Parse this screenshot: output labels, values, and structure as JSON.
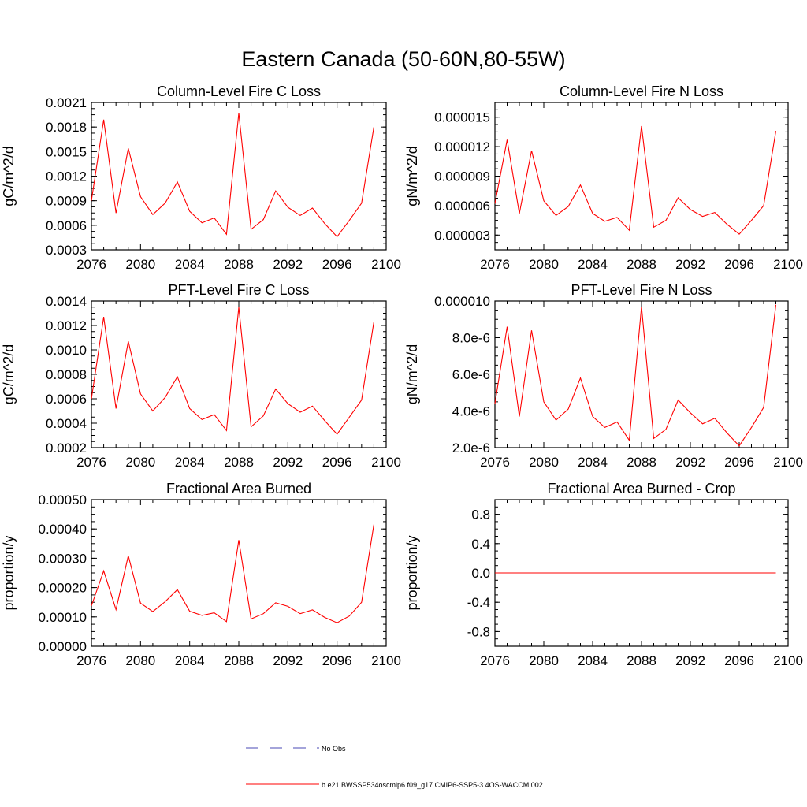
{
  "figure": {
    "title": "Eastern Canada (50-60N,80-55W)",
    "legend": [
      {
        "label": "No Obs",
        "color": "#4a4ab4",
        "style": "dashed"
      },
      {
        "label": "b.e21.BWSSP534oscmip6.f09_g17.CMIP6-SSP5-3.4OS-WACCM.002",
        "color": "#ff0000",
        "style": "solid"
      }
    ]
  },
  "chart_data": [
    {
      "type": "line",
      "title": "Column-Level Fire C Loss",
      "ylabel": "gC/m^2/d",
      "xlim": [
        2076,
        2100
      ],
      "ylim": [
        0.0003,
        0.0021
      ],
      "xticks": [
        2076,
        2080,
        2084,
        2088,
        2092,
        2096,
        2100
      ],
      "xtick_labels": [
        "2076",
        "2080",
        "2084",
        "2088",
        "2092",
        "2096",
        "2100"
      ],
      "yticks": [
        0.0003,
        0.0006,
        0.0009,
        0.0012,
        0.0015,
        0.0018,
        0.0021
      ],
      "ytick_labels": [
        "0.0003",
        "0.0006",
        "0.0009",
        "0.0012",
        "0.0015",
        "0.0018",
        "0.0021"
      ],
      "series": [
        {
          "name": "b.e21.BWSSP534oscmip6.f09_g17.CMIP6-SSP5-3.4OS-WACCM.002",
          "color": "#ff0000",
          "x": [
            2076,
            2077,
            2078,
            2079,
            2080,
            2081,
            2082,
            2083,
            2084,
            2085,
            2086,
            2087,
            2088,
            2089,
            2090,
            2091,
            2092,
            2093,
            2094,
            2095,
            2096,
            2097,
            2098,
            2099
          ],
          "y": [
            0.0009,
            0.00189,
            0.00075,
            0.00154,
            0.00095,
            0.00073,
            0.00087,
            0.00113,
            0.00077,
            0.00063,
            0.00069,
            0.00049,
            0.00197,
            0.00055,
            0.00067,
            0.00102,
            0.00082,
            0.00072,
            0.00081,
            0.00062,
            0.00046,
            0.00066,
            0.00087,
            0.0018
          ]
        }
      ]
    },
    {
      "type": "line",
      "title": "Column-Level Fire N Loss",
      "ylabel": "gN/m^2/d",
      "xlim": [
        2076,
        2100
      ],
      "ylim": [
        1.5e-06,
        1.65e-05
      ],
      "xticks": [
        2076,
        2080,
        2084,
        2088,
        2092,
        2096,
        2100
      ],
      "xtick_labels": [
        "2076",
        "2080",
        "2084",
        "2088",
        "2092",
        "2096",
        "2100"
      ],
      "yticks": [
        3e-06,
        6e-06,
        9e-06,
        1.2e-05,
        1.5e-05
      ],
      "ytick_labels": [
        "0.000003",
        "0.000006",
        "0.000009",
        "0.000012",
        "0.000015"
      ],
      "series": [
        {
          "name": "b.e21.BWSSP534oscmip6.f09_g17.CMIP6-SSP5-3.4OS-WACCM.002",
          "color": "#ff0000",
          "x": [
            2076,
            2077,
            2078,
            2079,
            2080,
            2081,
            2082,
            2083,
            2084,
            2085,
            2086,
            2087,
            2088,
            2089,
            2090,
            2091,
            2092,
            2093,
            2094,
            2095,
            2096,
            2097,
            2098,
            2099
          ],
          "y": [
            6.2e-06,
            1.27e-05,
            5.2e-06,
            1.16e-05,
            6.5e-06,
            5e-06,
            5.9e-06,
            8.1e-06,
            5.2e-06,
            4.4e-06,
            4.8e-06,
            3.5e-06,
            1.41e-05,
            3.8e-06,
            4.5e-06,
            6.8e-06,
            5.6e-06,
            4.9e-06,
            5.3e-06,
            4.1e-06,
            3.1e-06,
            4.5e-06,
            6e-06,
            1.36e-05
          ]
        }
      ]
    },
    {
      "type": "line",
      "title": "PFT-Level Fire C Loss",
      "ylabel": "gC/m^2/d",
      "xlim": [
        2076,
        2100
      ],
      "ylim": [
        0.0002,
        0.0014
      ],
      "xticks": [
        2076,
        2080,
        2084,
        2088,
        2092,
        2096,
        2100
      ],
      "xtick_labels": [
        "2076",
        "2080",
        "2084",
        "2088",
        "2092",
        "2096",
        "2100"
      ],
      "yticks": [
        0.0002,
        0.0004,
        0.0006,
        0.0008,
        0.001,
        0.0012,
        0.0014
      ],
      "ytick_labels": [
        "0.0002",
        "0.0004",
        "0.0006",
        "0.0008",
        "0.0010",
        "0.0012",
        "0.0014"
      ],
      "series": [
        {
          "name": "b.e21.BWSSP534oscmip6.f09_g17.CMIP6-SSP5-3.4OS-WACCM.002",
          "color": "#ff0000",
          "x": [
            2076,
            2077,
            2078,
            2079,
            2080,
            2081,
            2082,
            2083,
            2084,
            2085,
            2086,
            2087,
            2088,
            2089,
            2090,
            2091,
            2092,
            2093,
            2094,
            2095,
            2096,
            2097,
            2098,
            2099
          ],
          "y": [
            0.0006,
            0.00127,
            0.00052,
            0.00107,
            0.00064,
            0.0005,
            0.00061,
            0.00078,
            0.00052,
            0.00043,
            0.00047,
            0.00034,
            0.00135,
            0.00037,
            0.00046,
            0.00068,
            0.00056,
            0.00049,
            0.00054,
            0.00042,
            0.00031,
            0.00045,
            0.00059,
            0.00123
          ]
        }
      ]
    },
    {
      "type": "line",
      "title": "PFT-Level Fire N Loss",
      "ylabel": "gN/m^2/d",
      "xlim": [
        2076,
        2100
      ],
      "ylim": [
        2e-06,
        1e-05
      ],
      "xticks": [
        2076,
        2080,
        2084,
        2088,
        2092,
        2096,
        2100
      ],
      "xtick_labels": [
        "2076",
        "2080",
        "2084",
        "2088",
        "2092",
        "2096",
        "2100"
      ],
      "yticks": [
        2e-06,
        4e-06,
        6e-06,
        8e-06,
        1e-05
      ],
      "ytick_labels": [
        "2.0e-6",
        "4.0e-6",
        "6.0e-6",
        "8.0e-6",
        "0.000010"
      ],
      "series": [
        {
          "name": "b.e21.BWSSP534oscmip6.f09_g17.CMIP6-SSP5-3.4OS-WACCM.002",
          "color": "#ff0000",
          "x": [
            2076,
            2077,
            2078,
            2079,
            2080,
            2081,
            2082,
            2083,
            2084,
            2085,
            2086,
            2087,
            2088,
            2089,
            2090,
            2091,
            2092,
            2093,
            2094,
            2095,
            2096,
            2097,
            2098,
            2099
          ],
          "y": [
            4.4e-06,
            8.6e-06,
            3.7e-06,
            8.4e-06,
            4.5e-06,
            3.5e-06,
            4.1e-06,
            5.8e-06,
            3.7e-06,
            3.1e-06,
            3.4e-06,
            2.4e-06,
            9.7e-06,
            2.5e-06,
            3e-06,
            4.6e-06,
            3.9e-06,
            3.3e-06,
            3.6e-06,
            2.8e-06,
            2.1e-06,
            3.1e-06,
            4.2e-06,
            9.8e-06
          ]
        }
      ]
    },
    {
      "type": "line",
      "title": "Fractional Area Burned",
      "ylabel": "proportion/y",
      "xlim": [
        2076,
        2100
      ],
      "ylim": [
        0.0,
        0.0005
      ],
      "xticks": [
        2076,
        2080,
        2084,
        2088,
        2092,
        2096,
        2100
      ],
      "xtick_labels": [
        "2076",
        "2080",
        "2084",
        "2088",
        "2092",
        "2096",
        "2100"
      ],
      "yticks": [
        0.0,
        0.0001,
        0.0002,
        0.0003,
        0.0004,
        0.0005
      ],
      "ytick_labels": [
        "0.00000",
        "0.00010",
        "0.00020",
        "0.00030",
        "0.00040",
        "0.00050"
      ],
      "series": [
        {
          "name": "b.e21.BWSSP534oscmip6.f09_g17.CMIP6-SSP5-3.4OS-WACCM.002",
          "color": "#ff0000",
          "x": [
            2076,
            2077,
            2078,
            2079,
            2080,
            2081,
            2082,
            2083,
            2084,
            2085,
            2086,
            2087,
            2088,
            2089,
            2090,
            2091,
            2092,
            2093,
            2094,
            2095,
            2096,
            2097,
            2098,
            2099
          ],
          "y": [
            0.000138,
            0.000257,
            0.000125,
            0.000309,
            0.000147,
            0.000118,
            0.000152,
            0.000193,
            0.000119,
            0.000105,
            0.000114,
            8.4e-05,
            0.000362,
            9.3e-05,
            0.000111,
            0.000148,
            0.000136,
            0.000111,
            0.000124,
            9.8e-05,
            8e-05,
            0.000103,
            0.00015,
            0.000415
          ]
        }
      ]
    },
    {
      "type": "line",
      "title": "Fractional Area Burned - Crop",
      "ylabel": "proportion/y",
      "xlim": [
        2076,
        2100
      ],
      "ylim": [
        -1.0,
        1.0
      ],
      "xticks": [
        2076,
        2080,
        2084,
        2088,
        2092,
        2096,
        2100
      ],
      "xtick_labels": [
        "2076",
        "2080",
        "2084",
        "2088",
        "2092",
        "2096",
        "2100"
      ],
      "yticks": [
        -0.8,
        -0.4,
        0.0,
        0.4,
        0.8
      ],
      "ytick_labels": [
        "-0.8",
        "-0.4",
        "0.0",
        "0.4",
        "0.8"
      ],
      "series": [
        {
          "name": "b.e21.BWSSP534oscmip6.f09_g17.CMIP6-SSP5-3.4OS-WACCM.002",
          "color": "#ff0000",
          "x": [
            2076,
            2077,
            2078,
            2079,
            2080,
            2081,
            2082,
            2083,
            2084,
            2085,
            2086,
            2087,
            2088,
            2089,
            2090,
            2091,
            2092,
            2093,
            2094,
            2095,
            2096,
            2097,
            2098,
            2099
          ],
          "y": [
            0,
            0,
            0,
            0,
            0,
            0,
            0,
            0,
            0,
            0,
            0,
            0,
            0,
            0,
            0,
            0,
            0,
            0,
            0,
            0,
            0,
            0,
            0,
            0
          ]
        }
      ]
    }
  ]
}
